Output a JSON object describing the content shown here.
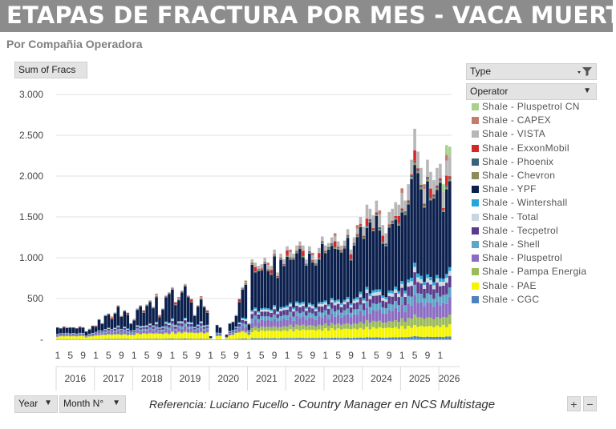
{
  "title": "ETAPAS DE FRACTURA POR MES -  VACA MUERTA",
  "subtitle": "Por Compañia Operadora",
  "measure_label": "Sum of Fracs",
  "type_filter": "Type",
  "operator_filter": "Operator",
  "year_button": "Year",
  "month_button": "Month N°",
  "reference_prefix": "Referencia:  Luciano Fucello - ",
  "reference_role": "Country Manager en NCS Multistage",
  "zoom_in": "+",
  "zoom_out": "−",
  "chart_data": {
    "type": "bar",
    "stacked": true,
    "y_ticks": [
      "3.000",
      "2.500",
      "2.000",
      "1.500",
      "1.000",
      "500",
      "-"
    ],
    "ylim": [
      0,
      3000
    ],
    "grid": true,
    "legend_position": "right",
    "x_month_ticks": [
      "1",
      "5",
      "9",
      "1",
      "5",
      "9",
      "1",
      "5",
      "9",
      "1",
      "5",
      "9",
      "1",
      "5",
      "9",
      "1",
      "5",
      "9",
      "1",
      "5",
      "9",
      "1",
      "5",
      "9",
      "1",
      "5",
      "9",
      "1",
      "5",
      "9",
      "1"
    ],
    "years": [
      "2016",
      "2017",
      "2018",
      "2019",
      "2020",
      "2021",
      "2022",
      "2023",
      "2024",
      "2025",
      "2026"
    ],
    "series_names": [
      "Shale - CGC",
      "Shale - PAE",
      "Shale - Pampa Energia",
      "Shale - Pluspetrol",
      "Shale - Shell",
      "Shale - Tecpetrol",
      "Shale - Total",
      "Shale - Wintershall",
      "Shale - YPF",
      "Shale - Chevron",
      "Shale - Phoenix",
      "Shale - ExxonMobil",
      "Shale - VISTA",
      "Shale - CAPEX",
      "Shale - Pluspetrol CN"
    ],
    "legend": [
      {
        "name": "Shale - Pluspetrol CN",
        "color": "#a9d18e"
      },
      {
        "name": "Shale - CAPEX",
        "color": "#c47c6e"
      },
      {
        "name": "Shale - VISTA",
        "color": "#b7b7b7"
      },
      {
        "name": "Shale - ExxonMobil",
        "color": "#d62728"
      },
      {
        "name": "Shale - Phoenix",
        "color": "#3a6378"
      },
      {
        "name": "Shale - Chevron",
        "color": "#8c8c5a"
      },
      {
        "name": "Shale - YPF",
        "color": "#0b1f4d"
      },
      {
        "name": "Shale - Wintershall",
        "color": "#25a6d9"
      },
      {
        "name": "Shale - Total",
        "color": "#c9d6de"
      },
      {
        "name": "Shale - Tecpetrol",
        "color": "#5b3a8c"
      },
      {
        "name": "Shale - Shell",
        "color": "#5aa7c7"
      },
      {
        "name": "Shale - Pluspetrol",
        "color": "#8a6cc2"
      },
      {
        "name": "Shale - Pampa Energia",
        "color": "#9bbb59"
      },
      {
        "name": "Shale - PAE",
        "color": "#f5f500"
      },
      {
        "name": "Shale - CGC",
        "color": "#4f81bd"
      }
    ],
    "totals": [
      150,
      140,
      160,
      150,
      150,
      150,
      140,
      160,
      150,
      100,
      130,
      170,
      170,
      250,
      200,
      300,
      320,
      280,
      330,
      420,
      290,
      360,
      330,
      200,
      250,
      380,
      420,
      360,
      430,
      480,
      400,
      560,
      300,
      380,
      540,
      580,
      640,
      460,
      520,
      600,
      680,
      540,
      500,
      300,
      420,
      530,
      410,
      360,
      40,
      0,
      180,
      150,
      0,
      60,
      200,
      220,
      300,
      500,
      640,
      720,
      200,
      980,
      940,
      900,
      920,
      1000,
      940,
      900,
      1100,
      820,
      1050,
      980,
      1140,
      1100,
      1050,
      1150,
      1200,
      1150,
      980,
      1140,
      1060,
      980,
      1120,
      1260,
      1150,
      1180,
      1250,
      1300,
      1200,
      1150,
      1210,
      1350,
      1100,
      1250,
      1400,
      1500,
      1380,
      1650,
      1600,
      1520,
      1700,
      1580,
      1400,
      1300,
      1560,
      1600,
      1680,
      1650,
      1850,
      1700,
      1900,
      2200,
      2580,
      2300,
      2100,
      1900,
      2200,
      2050,
      1950,
      2100,
      2150,
      1900,
      2380,
      2360
    ]
  }
}
